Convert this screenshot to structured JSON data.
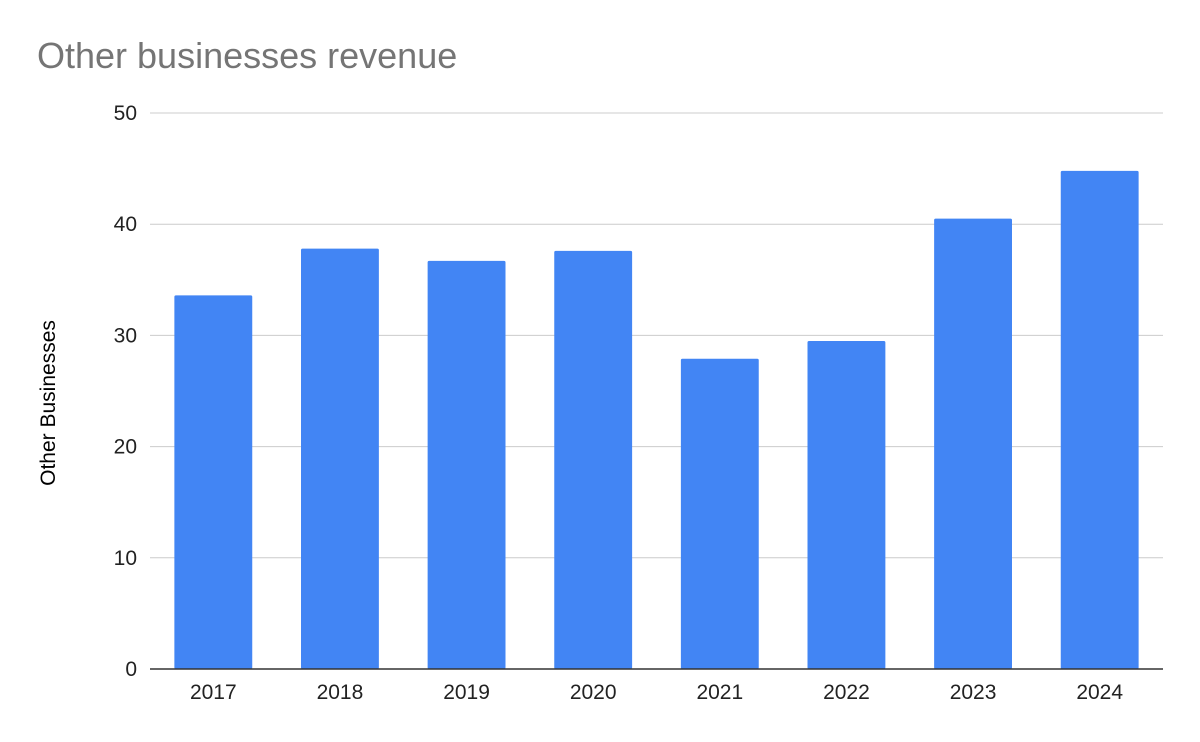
{
  "chart_data": {
    "type": "bar",
    "title": "Other businesses revenue",
    "xlabel": "",
    "ylabel": "Other Businesses",
    "categories": [
      "2017",
      "2018",
      "2019",
      "2020",
      "2021",
      "2022",
      "2023",
      "2024"
    ],
    "series": [
      {
        "values": [
          33.6,
          37.8,
          36.7,
          37.6,
          27.9,
          29.5,
          40.5,
          44.8
        ],
        "color": "#4285f4"
      }
    ],
    "ylim": [
      0,
      50
    ],
    "yticks": [
      "0",
      "10",
      "20",
      "30",
      "40",
      "50"
    ],
    "grid": true,
    "legend": "none"
  },
  "colors": {
    "bar": "#4285f4",
    "grid": "#cccccc",
    "axis": "#333333",
    "title": "#757575"
  }
}
